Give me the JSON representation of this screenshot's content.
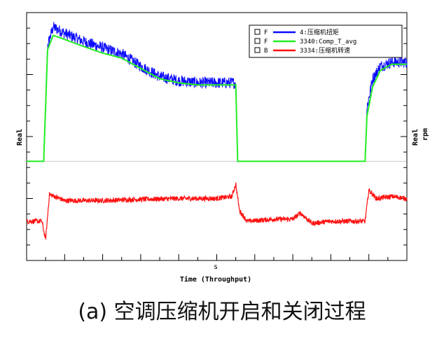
{
  "chart_data": {
    "type": "line",
    "xlabel_top": "s",
    "xlabel": "Time (Throughput)",
    "ylabel_left": "Real",
    "ylabel_right_1": "Real",
    "ylabel_right_2": "rpm",
    "legend_position": "top-right",
    "series": [
      {
        "name": "4:压缩机扭矩",
        "flag": "F",
        "color": "#0a0aff",
        "noise": 0.14,
        "x": [
          0,
          0.03,
          0.045,
          0.055,
          0.07,
          0.1,
          0.15,
          0.2,
          0.25,
          0.3,
          0.35,
          0.4,
          0.45,
          0.5,
          0.55,
          0.555,
          0.6,
          0.65,
          0.7,
          0.8,
          0.89,
          0.895,
          0.91,
          0.93,
          0.96,
          1.0
        ],
        "values": [
          0,
          0,
          0,
          2.8,
          3.25,
          3.1,
          2.9,
          2.75,
          2.6,
          2.3,
          2.05,
          1.95,
          1.9,
          1.9,
          1.9,
          0,
          0,
          0,
          0,
          0,
          0,
          1.3,
          2.0,
          2.3,
          2.4,
          2.4
        ]
      },
      {
        "name": "3340:Comp_T_avg",
        "flag": "F",
        "color": "#22ee22",
        "noise": 0.0,
        "x": [
          0,
          0.03,
          0.045,
          0.055,
          0.07,
          0.1,
          0.15,
          0.2,
          0.25,
          0.3,
          0.35,
          0.4,
          0.45,
          0.5,
          0.55,
          0.555,
          0.6,
          0.65,
          0.7,
          0.8,
          0.89,
          0.895,
          0.91,
          0.93,
          0.96,
          1.0
        ],
        "values": [
          0,
          0,
          0,
          2.7,
          3.05,
          2.95,
          2.78,
          2.62,
          2.5,
          2.25,
          2.0,
          1.9,
          1.85,
          1.85,
          1.85,
          0,
          0,
          0,
          0,
          0,
          0,
          1.1,
          1.8,
          2.2,
          2.35,
          2.35
        ]
      },
      {
        "name": "3334:压缩机转速",
        "flag": "B",
        "color": "#ff1010",
        "noise": 0.06,
        "x": [
          0,
          0.04,
          0.05,
          0.06,
          0.1,
          0.2,
          0.3,
          0.4,
          0.5,
          0.54,
          0.55,
          0.56,
          0.58,
          0.65,
          0.7,
          0.72,
          0.75,
          0.8,
          0.85,
          0.89,
          0.9,
          0.92,
          0.96,
          1.0
        ],
        "values": [
          -1.45,
          -1.45,
          -1.9,
          -0.8,
          -0.95,
          -0.95,
          -0.92,
          -0.9,
          -0.9,
          -0.85,
          -0.55,
          -1.2,
          -1.45,
          -1.4,
          -1.4,
          -1.25,
          -1.5,
          -1.45,
          -1.45,
          -1.45,
          -0.7,
          -0.9,
          -0.85,
          -0.9
        ]
      }
    ]
  },
  "caption": "(a)  空调压缩机开启和关闭过程"
}
